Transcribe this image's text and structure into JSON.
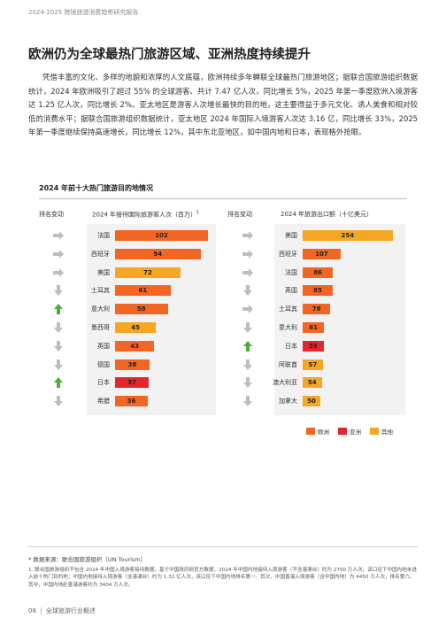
{
  "running_head": "2024-2025 跨境旅游消费趋势研究报告",
  "title": "欧洲仍为全球最热门旅游区域、亚洲热度持续提升",
  "body": "凭借丰富的文化、多样的地貌和浓厚的人文底蕴，欧洲持续多年蝉联全球最热门旅游地区；据联合国旅游组织数据统计，2024 年欧洲吸引了超过 55% 的全球游客、共计 7.47 亿人次，同比增长 5%，2025 年第一季度欧洲入境游客达 1.25 亿人次，同比增长 2%。亚太地区是游客人次增长最快的目的地，这主要得益于多元文化、诱人美食和相对较低的消费水平；据联合国旅游组织数据统计，亚太地区 2024 年国际入境游客人次达 3.16 亿，同比增长 33%，2025 年第一季度继续保持高速增长，同比增长 12%，其中东北亚地区，如中国内地和日本，表现格外抢眼。",
  "chart_title": "2024 年前十大热门旅游目的地情况",
  "left_panel": {
    "rank_header": "排名变动",
    "header": "2024 年接待国际旅游客人次（百万）",
    "header_sup": "1"
  },
  "right_panel": {
    "rank_header": "排名变动",
    "header": "2024 年旅游出口额（十亿美元）"
  },
  "colors": {
    "europe": "#f26522",
    "asia": "#e3262e",
    "other": "#f5a623",
    "arrow_up": "#4caf3a",
    "arrow_neutral": "#bdbdbd",
    "panel": "#f2f2f2"
  },
  "chart_data": [
    {
      "type": "bar",
      "title": "2024 年接待国际旅游客人次（百万）",
      "categories": [
        "法国",
        "西班牙",
        "美国",
        "土耳其",
        "意大利",
        "墨西哥",
        "英国",
        "德国",
        "日本",
        "希腊"
      ],
      "values": [
        102,
        94,
        72,
        61,
        58,
        45,
        43,
        38,
        37,
        36
      ],
      "regions": [
        "europe",
        "europe",
        "other",
        "europe",
        "europe",
        "other",
        "europe",
        "europe",
        "asia",
        "europe"
      ],
      "rank_change": [
        "same",
        "same",
        "same",
        "down",
        "up",
        "down",
        "down",
        "down",
        "up",
        "down"
      ],
      "xlim": [
        0,
        110
      ]
    },
    {
      "type": "bar",
      "title": "2024 年旅游出口额（十亿美元）",
      "categories": [
        "美国",
        "西班牙",
        "法国",
        "英国",
        "土耳其",
        "意大利",
        "日本",
        "阿联酋",
        "澳大利亚",
        "加拿大"
      ],
      "values": [
        254,
        107,
        86,
        85,
        78,
        61,
        59,
        57,
        54,
        50
      ],
      "regions": [
        "other",
        "europe",
        "europe",
        "europe",
        "europe",
        "europe",
        "asia",
        "other",
        "other",
        "other"
      ],
      "rank_change": [
        "same",
        "same",
        "same",
        "down",
        "same",
        "down",
        "up",
        "down",
        "down",
        "down"
      ],
      "xlim": [
        0,
        275
      ]
    }
  ],
  "legend": [
    {
      "key": "europe",
      "label": "欧洲"
    },
    {
      "key": "asia",
      "label": "亚洲"
    },
    {
      "key": "other",
      "label": "其他"
    }
  ],
  "source": "* 数据来源：联合国旅游组织（UN Tourism）",
  "note": "1. 联合国旅游组织不包含 2024 年中国入境游客接待数据。基于中国政府网官方数据，2024 年中国内地接待入境游客（不含港澳台）约为 2700 万人次，该口径下中国内地未进入前十热门目的地；中国内地接待入境游客（含港澳台）约为 1.32 亿人次，该口径下中国内地排名第一。其次，中国香港入境游客（含中国内地）为 4450 万人次，排名第六。其中，中国内地赴香港游客约为 3404 万人次。",
  "folio": {
    "page": "08",
    "section": "全球旅游行业概述"
  }
}
